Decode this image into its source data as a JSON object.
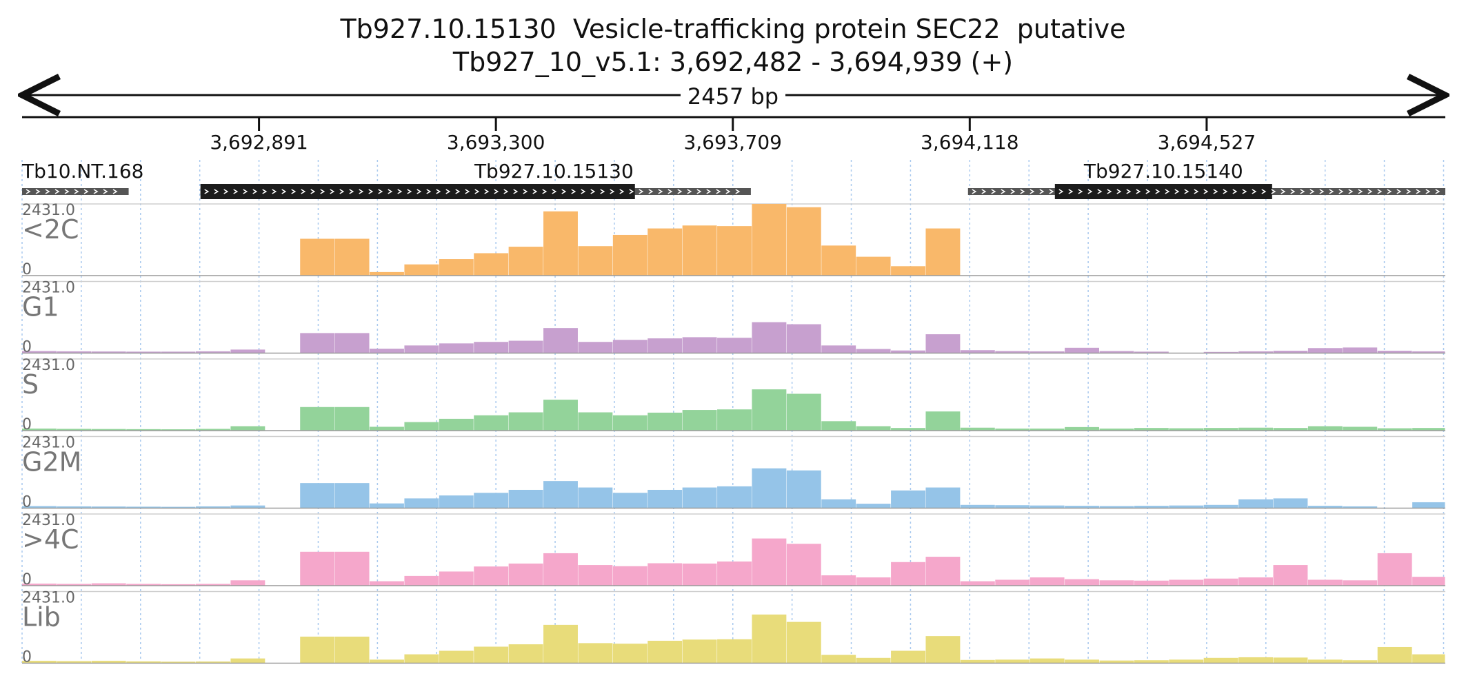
{
  "title": "Tb927.10.15130  Vesicle-trafficking protein SEC22  putative",
  "subtitle": "Tb927_10_v5.1: 3,692,482 - 3,694,939 (+)",
  "scale_label": "2457 bp",
  "colors": {
    "<2C": "#f9b86a",
    "G1": "#c7a0cf",
    "S": "#93d39a",
    "G2M": "#95c4e8",
    ">4C": "#f5a7cb",
    "Lib": "#e8dc7a",
    "gene_dark": "#1c1c1c",
    "gene_light": "#555555",
    "grid": "#a9c9ee"
  },
  "chart_data": {
    "type": "bar",
    "genome_range": [
      3692482,
      3694939
    ],
    "position_ticks": [
      "3,692,891",
      "3,693,300",
      "3,693,709",
      "3,694,118",
      "3,694,527"
    ],
    "tick_values": [
      3692891,
      3693300,
      3693709,
      3694118,
      3694527
    ],
    "genes": [
      {
        "name": "Tb10.NT.168",
        "start": 3692482,
        "end": 3692666,
        "cds": []
      },
      {
        "name": "Tb927.10.15130",
        "start": 3692790,
        "end": 3693740,
        "cds": [
          [
            3692790,
            3693540
          ]
        ]
      },
      {
        "name": "",
        "start": 3693540,
        "end": 3693740,
        "cds": []
      },
      {
        "name": "Tb927.10.15140",
        "start": 3694115,
        "end": 3694939,
        "cds": [
          [
            3694265,
            3694640
          ]
        ]
      }
    ],
    "ymax_label": "2431.0",
    "ymin_label": "0",
    "ylim": [
      0,
      2431
    ],
    "track_x": [
      3692482,
      3692542,
      3692602,
      3692662,
      3692722,
      3692782,
      3692842,
      3692902,
      3692962,
      3693022,
      3693082,
      3693142,
      3693202,
      3693262,
      3693322,
      3693382,
      3693442,
      3693502,
      3693562,
      3693622,
      3693682,
      3693742,
      3693802,
      3693862,
      3693922,
      3693982,
      3694042,
      3694102,
      3694162,
      3694222,
      3694282,
      3694342,
      3694402,
      3694462,
      3694522,
      3694582,
      3694642,
      3694702,
      3694762,
      3694822,
      3694882,
      3694939
    ],
    "series": [
      {
        "name": "<2C",
        "values": [
          0,
          0,
          0,
          0,
          0,
          0,
          0,
          0,
          1250,
          1250,
          120,
          380,
          560,
          760,
          980,
          2180,
          1000,
          1380,
          1600,
          1700,
          1680,
          2431,
          2320,
          1020,
          640,
          320,
          1600,
          0,
          0,
          0,
          0,
          0,
          0,
          0,
          0,
          0,
          0,
          0,
          0,
          0,
          0,
          0
        ]
      },
      {
        "name": "G1",
        "values": [
          70,
          60,
          55,
          50,
          50,
          60,
          120,
          0,
          680,
          680,
          150,
          260,
          330,
          380,
          420,
          850,
          380,
          450,
          500,
          540,
          520,
          1050,
          980,
          260,
          140,
          90,
          640,
          100,
          70,
          60,
          180,
          70,
          50,
          0,
          40,
          60,
          80,
          170,
          190,
          80,
          60,
          40
        ]
      },
      {
        "name": "S",
        "values": [
          70,
          60,
          55,
          50,
          45,
          60,
          150,
          0,
          800,
          800,
          130,
          290,
          400,
          520,
          620,
          1050,
          620,
          520,
          610,
          700,
          720,
          1400,
          1250,
          320,
          150,
          90,
          650,
          100,
          70,
          70,
          120,
          70,
          90,
          80,
          90,
          100,
          90,
          150,
          130,
          80,
          90,
          160
        ]
      },
      {
        "name": "G2M",
        "values": [
          70,
          60,
          55,
          50,
          45,
          60,
          90,
          0,
          850,
          850,
          160,
          330,
          430,
          520,
          620,
          920,
          700,
          520,
          620,
          700,
          740,
          1350,
          1280,
          300,
          150,
          600,
          700,
          110,
          100,
          90,
          80,
          70,
          80,
          90,
          110,
          300,
          330,
          80,
          60,
          0,
          200,
          230
        ]
      },
      {
        "name": ">4C",
        "values": [
          70,
          60,
          80,
          60,
          50,
          60,
          180,
          0,
          1150,
          1150,
          150,
          330,
          480,
          650,
          750,
          1100,
          700,
          660,
          760,
          750,
          820,
          1600,
          1420,
          350,
          280,
          800,
          980,
          150,
          200,
          280,
          220,
          180,
          170,
          200,
          240,
          280,
          700,
          200,
          180,
          1100,
          300,
          560
        ]
      },
      {
        "name": "Lib",
        "values": [
          80,
          70,
          80,
          60,
          50,
          55,
          160,
          0,
          900,
          900,
          120,
          300,
          420,
          560,
          640,
          1300,
          680,
          660,
          760,
          800,
          810,
          1650,
          1400,
          280,
          180,
          420,
          920,
          110,
          120,
          160,
          120,
          90,
          100,
          120,
          180,
          200,
          190,
          120,
          100,
          550,
          300,
          330
        ]
      }
    ]
  }
}
